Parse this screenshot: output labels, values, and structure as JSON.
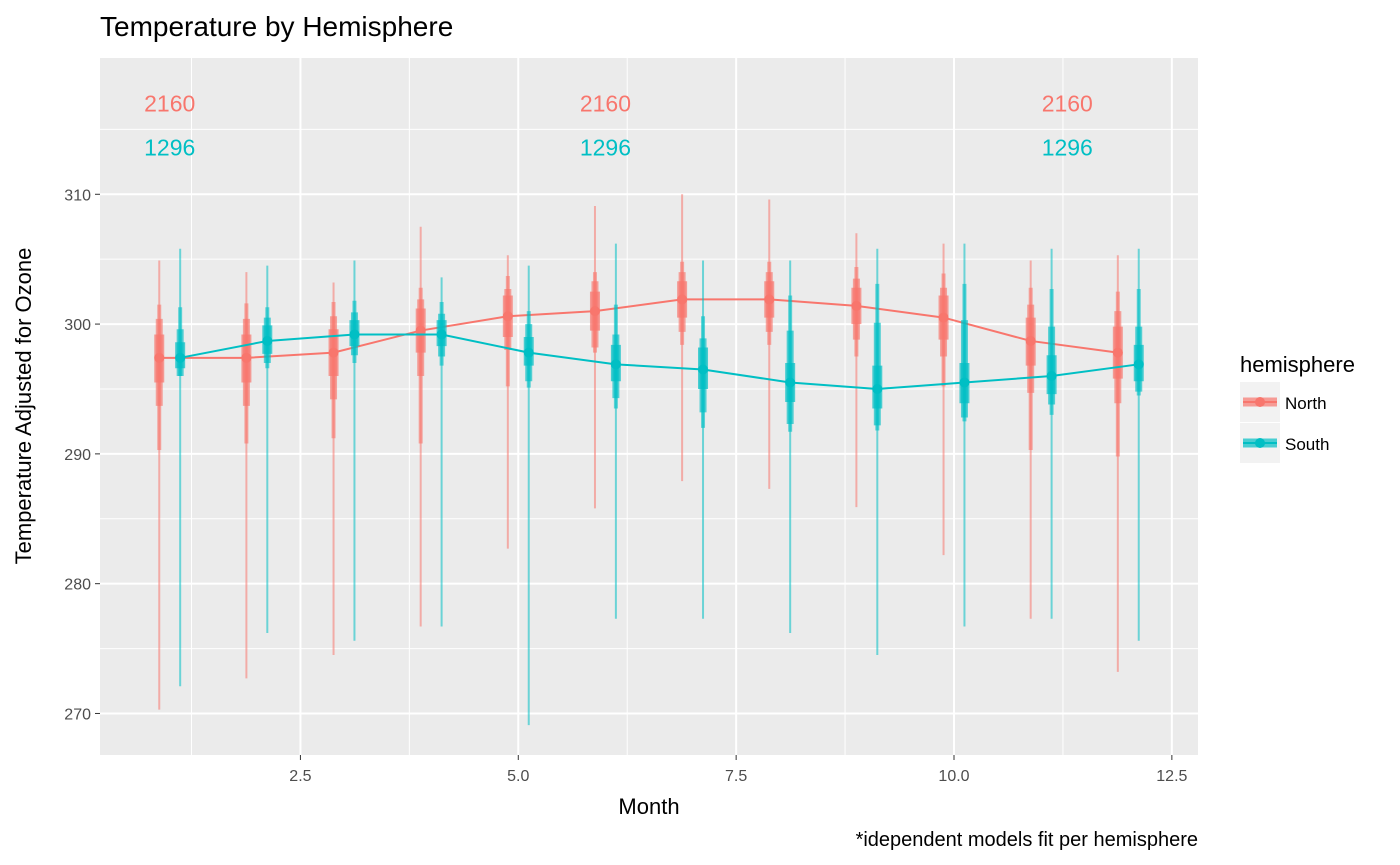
{
  "chart_data": {
    "type": "line",
    "title": "Temperature by Hemisphere",
    "xlabel": "Month",
    "ylabel": "Temperature Adjusted for Ozone",
    "caption": "*idependent models fit per hemisphere",
    "xlim": [
      0.2,
      12.8
    ],
    "ylim": [
      266.8,
      320.5
    ],
    "x_ticks": [
      2.5,
      5.0,
      7.5,
      10.0,
      12.5
    ],
    "x_tick_labels": [
      "2.5",
      "5.0",
      "7.5",
      "10.0",
      "12.5"
    ],
    "y_ticks": [
      270,
      280,
      290,
      300,
      310
    ],
    "y_tick_labels": [
      "270",
      "280",
      "290",
      "300",
      "310"
    ],
    "grid": true,
    "legend": {
      "title": "hemisphere",
      "position": "right"
    },
    "count_labels": {
      "x": [
        1,
        6,
        11.3
      ],
      "north": {
        "text": "2160",
        "y": 317
      },
      "south": {
        "text": "1296",
        "y": 313.6
      }
    },
    "series": [
      {
        "name": "North",
        "color": "#F8766D",
        "offset": -0.12,
        "x": [
          1,
          2,
          3,
          4,
          5,
          6,
          7,
          8,
          9,
          10,
          11,
          12
        ],
        "mean": [
          297.4,
          297.4,
          297.8,
          299.5,
          300.6,
          301.0,
          301.9,
          301.9,
          301.4,
          300.5,
          298.7,
          297.8
        ],
        "inner": [
          [
            295.5,
            299.2
          ],
          [
            295.5,
            299.2
          ],
          [
            296.0,
            299.6
          ],
          [
            297.8,
            301.2
          ],
          [
            299.0,
            302.2
          ],
          [
            299.5,
            302.5
          ],
          [
            300.5,
            303.3
          ],
          [
            300.5,
            303.3
          ],
          [
            300.0,
            302.8
          ],
          [
            298.8,
            302.2
          ],
          [
            296.8,
            300.5
          ],
          [
            295.8,
            299.8
          ]
        ],
        "mid": [
          [
            293.7,
            300.4
          ],
          [
            293.7,
            300.4
          ],
          [
            294.2,
            300.6
          ],
          [
            296.0,
            301.9
          ],
          [
            298.0,
            302.7
          ],
          [
            298.2,
            303.3
          ],
          [
            299.4,
            304.0
          ],
          [
            299.4,
            304.0
          ],
          [
            298.8,
            303.5
          ],
          [
            297.5,
            302.8
          ],
          [
            294.7,
            301.5
          ],
          [
            293.9,
            301.0
          ]
        ],
        "outer": [
          [
            290.3,
            301.5
          ],
          [
            290.8,
            301.6
          ],
          [
            291.2,
            301.7
          ],
          [
            290.8,
            302.8
          ],
          [
            295.2,
            303.7
          ],
          [
            297.8,
            304.0
          ],
          [
            298.4,
            304.8
          ],
          [
            298.4,
            304.8
          ],
          [
            297.5,
            304.4
          ],
          [
            295.2,
            303.9
          ],
          [
            290.3,
            302.8
          ],
          [
            289.8,
            302.5
          ]
        ],
        "range": [
          [
            270.3,
            304.9
          ],
          [
            272.7,
            304.0
          ],
          [
            274.5,
            303.2
          ],
          [
            276.7,
            307.5
          ],
          [
            282.7,
            305.3
          ],
          [
            285.8,
            309.1
          ],
          [
            287.9,
            310.0
          ],
          [
            287.3,
            309.6
          ],
          [
            285.9,
            307.0
          ],
          [
            282.2,
            306.2
          ],
          [
            277.3,
            304.9
          ],
          [
            273.2,
            305.3
          ]
        ]
      },
      {
        "name": "South",
        "color": "#00BFC4",
        "offset": 0.12,
        "x": [
          1,
          2,
          3,
          4,
          5,
          6,
          7,
          8,
          9,
          10,
          11,
          12
        ],
        "mean": [
          297.4,
          298.7,
          299.2,
          299.2,
          297.8,
          296.9,
          296.5,
          295.5,
          295.0,
          295.5,
          296.0,
          296.9
        ],
        "inner": [
          [
            296.6,
            298.6
          ],
          [
            297.7,
            299.9
          ],
          [
            298.3,
            300.3
          ],
          [
            298.3,
            300.3
          ],
          [
            296.8,
            299.0
          ],
          [
            295.6,
            298.4
          ],
          [
            295.0,
            298.2
          ],
          [
            294.0,
            297.0
          ],
          [
            293.5,
            296.8
          ],
          [
            293.9,
            297.0
          ],
          [
            294.6,
            297.6
          ],
          [
            295.6,
            298.4
          ]
        ],
        "mid": [
          [
            296.0,
            299.6
          ],
          [
            297.0,
            300.5
          ],
          [
            297.6,
            300.9
          ],
          [
            297.5,
            300.8
          ],
          [
            295.6,
            300.0
          ],
          [
            294.3,
            299.2
          ],
          [
            293.2,
            298.9
          ],
          [
            292.3,
            299.5
          ],
          [
            292.2,
            300.1
          ],
          [
            292.8,
            300.3
          ],
          [
            293.8,
            299.8
          ],
          [
            294.8,
            299.8
          ]
        ],
        "outer": [
          [
            296.0,
            301.3
          ],
          [
            296.6,
            301.3
          ],
          [
            297.0,
            301.8
          ],
          [
            296.8,
            301.7
          ],
          [
            295.1,
            301.0
          ],
          [
            293.5,
            301.5
          ],
          [
            292.0,
            300.6
          ],
          [
            291.7,
            302.2
          ],
          [
            291.8,
            303.1
          ],
          [
            292.5,
            303.1
          ],
          [
            293.0,
            302.7
          ],
          [
            294.5,
            302.7
          ]
        ],
        "range": [
          [
            272.1,
            305.8
          ],
          [
            276.2,
            304.5
          ],
          [
            275.6,
            304.9
          ],
          [
            276.7,
            303.6
          ],
          [
            269.1,
            304.5
          ],
          [
            277.3,
            306.2
          ],
          [
            277.3,
            304.9
          ],
          [
            276.2,
            304.9
          ],
          [
            274.5,
            305.8
          ],
          [
            276.7,
            306.2
          ],
          [
            277.3,
            305.8
          ],
          [
            275.6,
            305.8
          ]
        ]
      }
    ]
  }
}
